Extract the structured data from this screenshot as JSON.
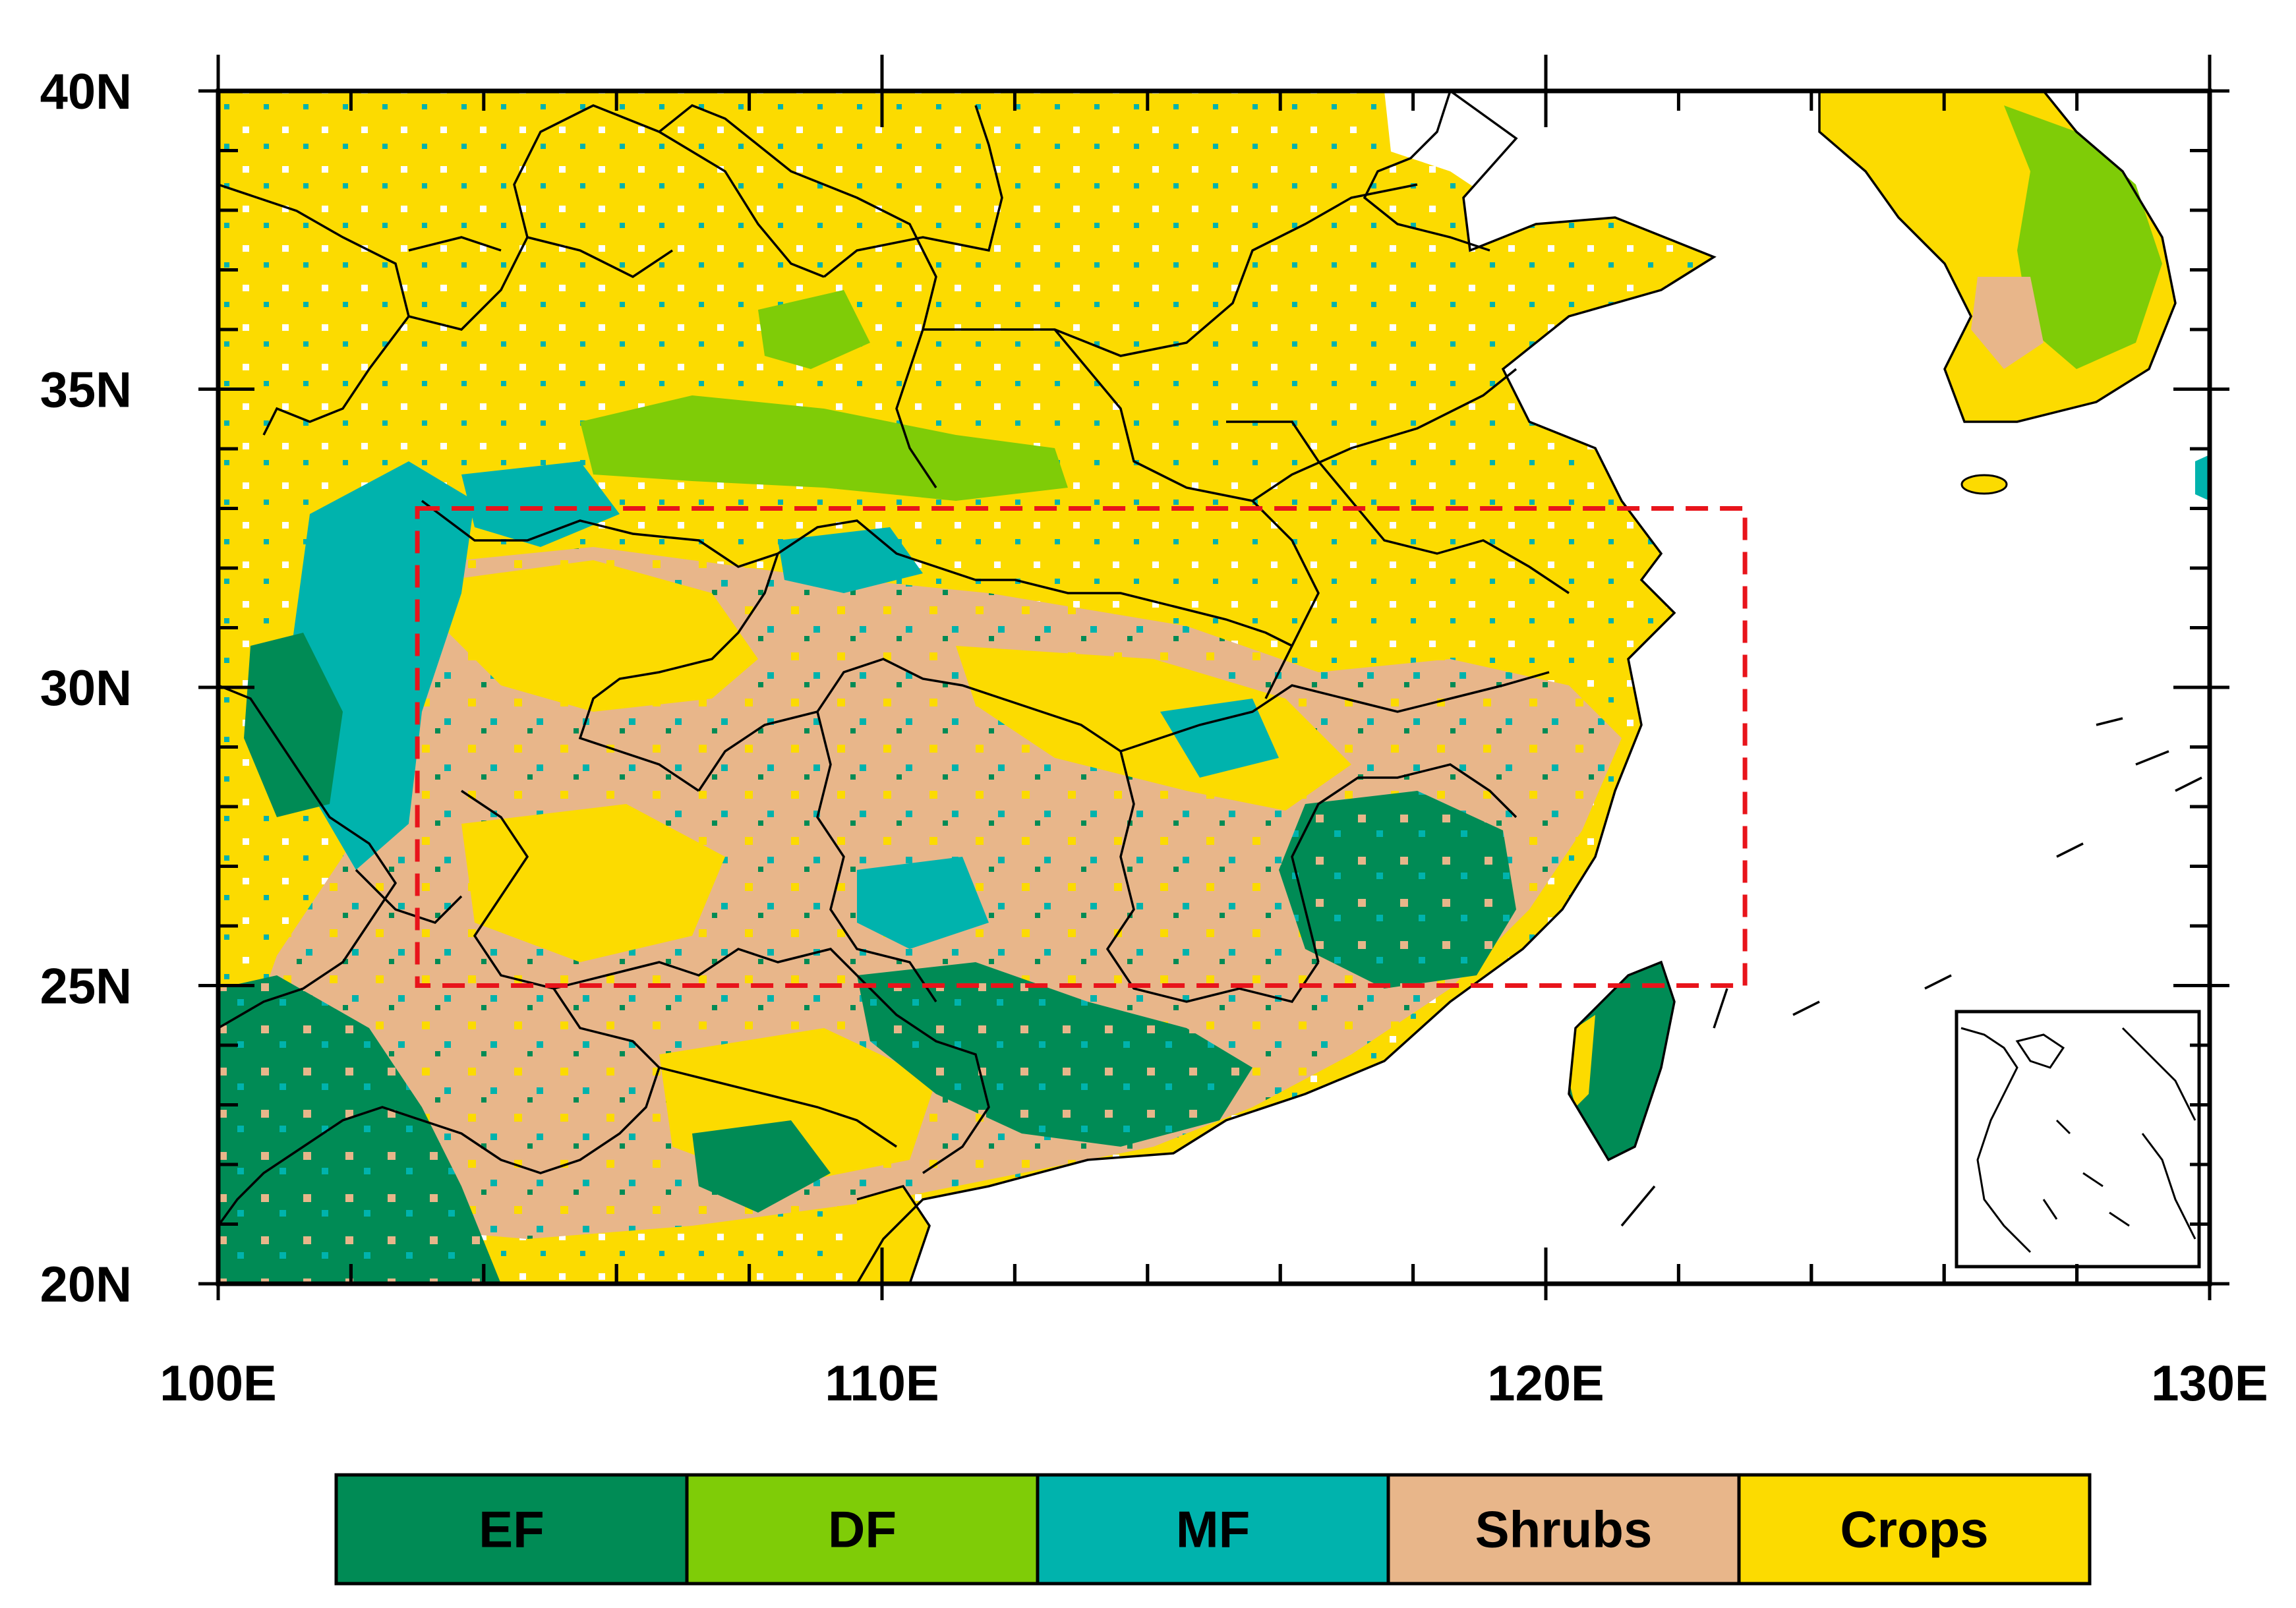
{
  "map": {
    "lon_range": [
      100,
      130
    ],
    "lat_range": [
      20,
      40
    ],
    "x_tick_labels": [
      {
        "lon": 100,
        "label": "100E"
      },
      {
        "lon": 110,
        "label": "110E"
      },
      {
        "lon": 120,
        "label": "120E"
      },
      {
        "lon": 130,
        "label": "130E"
      }
    ],
    "y_tick_labels": [
      {
        "lat": 40,
        "label": "40N"
      },
      {
        "lat": 35,
        "label": "35N"
      },
      {
        "lat": 30,
        "label": "30N"
      },
      {
        "lat": 25,
        "label": "25N"
      },
      {
        "lat": 20,
        "label": "20N"
      }
    ],
    "study_region": {
      "lon_min": 103,
      "lon_max": 123,
      "lat_min": 25,
      "lat_max": 33,
      "line_color": "#e8141b",
      "line_style": "dashed"
    },
    "inset_map": {
      "location": "bottom-right"
    }
  },
  "legend": {
    "items": [
      {
        "label": "EF",
        "color": "#008b55"
      },
      {
        "label": "DF",
        "color": "#7fcc07"
      },
      {
        "label": "MF",
        "color": "#00b3ad"
      },
      {
        "label": "Shrubs",
        "color": "#e8b68a"
      },
      {
        "label": "Crops",
        "color": "#fcdb00"
      }
    ]
  }
}
